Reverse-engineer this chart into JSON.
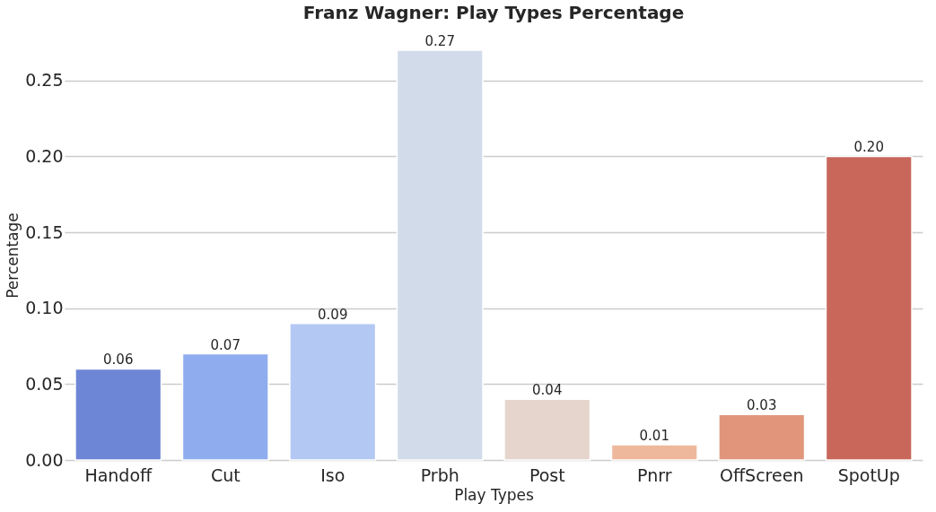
{
  "chart_data": {
    "type": "bar",
    "title": "Franz Wagner: Play Types Percentage",
    "xlabel": "Play Types",
    "ylabel": "Percentage",
    "categories": [
      "Handoff",
      "Cut",
      "Iso",
      "Prbh",
      "Post",
      "Pnrr",
      "OffScreen",
      "SpotUp"
    ],
    "values": [
      0.06,
      0.07,
      0.09,
      0.27,
      0.04,
      0.01,
      0.03,
      0.2
    ],
    "colors": [
      "#6e86d6",
      "#8fadee",
      "#b4c8f4",
      "#d2dbe9",
      "#e5d5cc",
      "#eeb89c",
      "#e1967c",
      "#c8675a"
    ],
    "value_labels": [
      "0.06",
      "0.07",
      "0.09",
      "0.27",
      "0.04",
      "0.01",
      "0.03",
      "0.20"
    ],
    "ylim": [
      0,
      0.27
    ],
    "yticks": [
      {
        "value": 0,
        "label": "0.00"
      },
      0.05,
      {
        "value": 0.1,
        "label": "0.10"
      },
      0.15,
      {
        "value": 0.2,
        "label": "0.20"
      },
      0.25
    ],
    "grid": "y"
  }
}
